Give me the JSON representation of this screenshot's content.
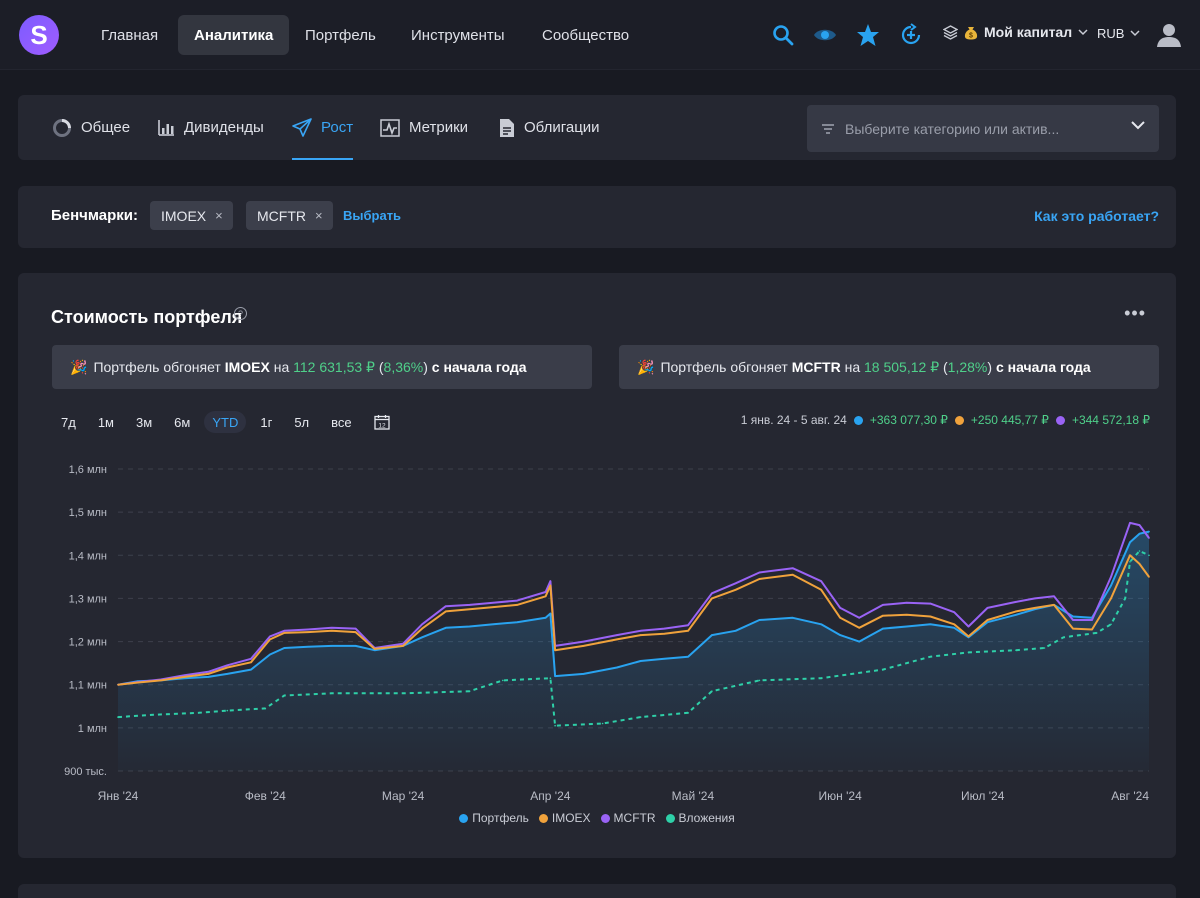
{
  "app": {
    "logo_letter": "S"
  },
  "nav": {
    "items": [
      "Главная",
      "Аналитика",
      "Портфель",
      "Инструменты",
      "Сообщество"
    ],
    "active_index": 1,
    "capital_label": "Мой капитал",
    "currency": "RUB"
  },
  "tabs": {
    "items": [
      "Общее",
      "Дивиденды",
      "Рост",
      "Метрики",
      "Облигации"
    ],
    "active_index": 2,
    "category_placeholder": "Выберите категорию или актив..."
  },
  "benchmarks": {
    "label": "Бенчмарки:",
    "chips": [
      "IMOEX",
      "MCFTR"
    ],
    "remove_glyph": "×",
    "choose_label": "Выбрать",
    "how_link": "Как это работает?"
  },
  "portfolio": {
    "title": "Стоимость портфеля",
    "help_glyph": "?",
    "more_glyph": "•••",
    "banners": [
      {
        "prefix": "Портфель обгоняет",
        "benchmark": "IMOEX",
        "on": "на",
        "amount": "112 631,53 ₽",
        "percent": "8,36%",
        "suffix": "с начала года"
      },
      {
        "prefix": "Портфель обгоняет",
        "benchmark": "MCFTR",
        "on": "на",
        "amount": "18 505,12 ₽",
        "percent": "1,28%",
        "suffix": "с начала года"
      }
    ],
    "periods": [
      "7д",
      "1м",
      "3м",
      "6м",
      "YTD",
      "1г",
      "5л",
      "все"
    ],
    "active_period": 4,
    "calendar_day": "12",
    "summary": {
      "range": "1 янв. 24 - 5 авг. 24",
      "values": [
        {
          "color": "#29a3f0",
          "text": "+363 077,30 ₽"
        },
        {
          "color": "#f0a23c",
          "text": "+250 445,77 ₽"
        },
        {
          "color": "#9a63f5",
          "text": "+344 572,18 ₽"
        }
      ]
    }
  },
  "chart_data": {
    "type": "line",
    "y_ticks": [
      "1,6 млн",
      "1,5 млн",
      "1,4 млн",
      "1,3 млн",
      "1,2 млн",
      "1,1 млн",
      "1 млн",
      "900 тыс."
    ],
    "ylim": [
      900000,
      1600000
    ],
    "x_ticks": [
      "Янв '24",
      "Фев '24",
      "Мар '24",
      "Апр '24",
      "Май '24",
      "Июн '24",
      "Июл '24",
      "Авг '24"
    ],
    "x_domain": [
      "2024-01-01",
      "2024-08-05"
    ],
    "grid": true,
    "legend_position": "bottom",
    "series": [
      {
        "name": "Портфель",
        "color": "#29a3f0",
        "style": "area",
        "points": [
          [
            "2024-01-01",
            1100000
          ],
          [
            "2024-01-05",
            1108000
          ],
          [
            "2024-01-10",
            1110000
          ],
          [
            "2024-01-15",
            1115000
          ],
          [
            "2024-01-20",
            1118000
          ],
          [
            "2024-01-24",
            1125000
          ],
          [
            "2024-01-29",
            1135000
          ],
          [
            "2024-02-02",
            1170000
          ],
          [
            "2024-02-05",
            1185000
          ],
          [
            "2024-02-10",
            1188000
          ],
          [
            "2024-02-15",
            1190000
          ],
          [
            "2024-02-20",
            1190000
          ],
          [
            "2024-02-24",
            1180000
          ],
          [
            "2024-03-01",
            1190000
          ],
          [
            "2024-03-05",
            1210000
          ],
          [
            "2024-03-10",
            1232000
          ],
          [
            "2024-03-15",
            1235000
          ],
          [
            "2024-03-20",
            1240000
          ],
          [
            "2024-03-25",
            1245000
          ],
          [
            "2024-03-31",
            1255000
          ],
          [
            "2024-04-01",
            1265000
          ],
          [
            "2024-04-02",
            1120000
          ],
          [
            "2024-04-08",
            1125000
          ],
          [
            "2024-04-15",
            1140000
          ],
          [
            "2024-04-20",
            1155000
          ],
          [
            "2024-04-25",
            1160000
          ],
          [
            "2024-04-30",
            1165000
          ],
          [
            "2024-05-05",
            1215000
          ],
          [
            "2024-05-10",
            1225000
          ],
          [
            "2024-05-15",
            1250000
          ],
          [
            "2024-05-22",
            1255000
          ],
          [
            "2024-05-28",
            1240000
          ],
          [
            "2024-06-01",
            1215000
          ],
          [
            "2024-06-05",
            1200000
          ],
          [
            "2024-06-10",
            1230000
          ],
          [
            "2024-06-15",
            1235000
          ],
          [
            "2024-06-20",
            1240000
          ],
          [
            "2024-06-25",
            1232000
          ],
          [
            "2024-06-28",
            1210000
          ],
          [
            "2024-07-02",
            1245000
          ],
          [
            "2024-07-08",
            1262000
          ],
          [
            "2024-07-12",
            1275000
          ],
          [
            "2024-07-16",
            1285000
          ],
          [
            "2024-07-20",
            1258000
          ],
          [
            "2024-07-24",
            1255000
          ],
          [
            "2024-07-28",
            1330000
          ],
          [
            "2024-08-01",
            1430000
          ],
          [
            "2024-08-03",
            1450000
          ],
          [
            "2024-08-05",
            1455000
          ]
        ]
      },
      {
        "name": "IMOEX",
        "color": "#f0a23c",
        "style": "line",
        "points": [
          [
            "2024-01-01",
            1100000
          ],
          [
            "2024-01-05",
            1105000
          ],
          [
            "2024-01-10",
            1110000
          ],
          [
            "2024-01-15",
            1118000
          ],
          [
            "2024-01-20",
            1125000
          ],
          [
            "2024-01-24",
            1140000
          ],
          [
            "2024-01-29",
            1152000
          ],
          [
            "2024-02-02",
            1205000
          ],
          [
            "2024-02-05",
            1220000
          ],
          [
            "2024-02-10",
            1222000
          ],
          [
            "2024-02-15",
            1225000
          ],
          [
            "2024-02-20",
            1222000
          ],
          [
            "2024-02-24",
            1183000
          ],
          [
            "2024-03-01",
            1190000
          ],
          [
            "2024-03-05",
            1230000
          ],
          [
            "2024-03-10",
            1270000
          ],
          [
            "2024-03-15",
            1275000
          ],
          [
            "2024-03-20",
            1280000
          ],
          [
            "2024-03-25",
            1285000
          ],
          [
            "2024-03-31",
            1305000
          ],
          [
            "2024-04-01",
            1330000
          ],
          [
            "2024-04-02",
            1180000
          ],
          [
            "2024-04-08",
            1190000
          ],
          [
            "2024-04-15",
            1205000
          ],
          [
            "2024-04-20",
            1215000
          ],
          [
            "2024-04-25",
            1218000
          ],
          [
            "2024-04-30",
            1225000
          ],
          [
            "2024-05-05",
            1300000
          ],
          [
            "2024-05-10",
            1320000
          ],
          [
            "2024-05-15",
            1345000
          ],
          [
            "2024-05-22",
            1355000
          ],
          [
            "2024-05-28",
            1320000
          ],
          [
            "2024-06-01",
            1255000
          ],
          [
            "2024-06-05",
            1232000
          ],
          [
            "2024-06-10",
            1260000
          ],
          [
            "2024-06-15",
            1262000
          ],
          [
            "2024-06-20",
            1258000
          ],
          [
            "2024-06-25",
            1240000
          ],
          [
            "2024-06-28",
            1212000
          ],
          [
            "2024-07-02",
            1250000
          ],
          [
            "2024-07-08",
            1270000
          ],
          [
            "2024-07-12",
            1278000
          ],
          [
            "2024-07-16",
            1285000
          ],
          [
            "2024-07-20",
            1230000
          ],
          [
            "2024-07-24",
            1228000
          ],
          [
            "2024-07-28",
            1300000
          ],
          [
            "2024-08-01",
            1400000
          ],
          [
            "2024-08-03",
            1380000
          ],
          [
            "2024-08-05",
            1350000
          ]
        ]
      },
      {
        "name": "MCFTR",
        "color": "#9a63f5",
        "style": "line",
        "points": [
          [
            "2024-01-01",
            1100000
          ],
          [
            "2024-01-05",
            1106000
          ],
          [
            "2024-01-10",
            1112000
          ],
          [
            "2024-01-15",
            1122000
          ],
          [
            "2024-01-20",
            1130000
          ],
          [
            "2024-01-24",
            1145000
          ],
          [
            "2024-01-29",
            1160000
          ],
          [
            "2024-02-02",
            1212000
          ],
          [
            "2024-02-05",
            1225000
          ],
          [
            "2024-02-10",
            1228000
          ],
          [
            "2024-02-15",
            1232000
          ],
          [
            "2024-02-20",
            1230000
          ],
          [
            "2024-02-24",
            1185000
          ],
          [
            "2024-03-01",
            1195000
          ],
          [
            "2024-03-05",
            1240000
          ],
          [
            "2024-03-10",
            1282000
          ],
          [
            "2024-03-15",
            1285000
          ],
          [
            "2024-03-20",
            1290000
          ],
          [
            "2024-03-25",
            1295000
          ],
          [
            "2024-03-31",
            1315000
          ],
          [
            "2024-04-01",
            1340000
          ],
          [
            "2024-04-02",
            1190000
          ],
          [
            "2024-04-08",
            1200000
          ],
          [
            "2024-04-15",
            1215000
          ],
          [
            "2024-04-20",
            1225000
          ],
          [
            "2024-04-25",
            1230000
          ],
          [
            "2024-04-30",
            1238000
          ],
          [
            "2024-05-05",
            1312000
          ],
          [
            "2024-05-10",
            1335000
          ],
          [
            "2024-05-15",
            1360000
          ],
          [
            "2024-05-22",
            1370000
          ],
          [
            "2024-05-28",
            1340000
          ],
          [
            "2024-06-01",
            1278000
          ],
          [
            "2024-06-05",
            1255000
          ],
          [
            "2024-06-10",
            1285000
          ],
          [
            "2024-06-15",
            1290000
          ],
          [
            "2024-06-20",
            1288000
          ],
          [
            "2024-06-25",
            1268000
          ],
          [
            "2024-06-28",
            1235000
          ],
          [
            "2024-07-02",
            1278000
          ],
          [
            "2024-07-08",
            1292000
          ],
          [
            "2024-07-12",
            1300000
          ],
          [
            "2024-07-16",
            1305000
          ],
          [
            "2024-07-20",
            1250000
          ],
          [
            "2024-07-24",
            1250000
          ],
          [
            "2024-07-28",
            1350000
          ],
          [
            "2024-08-01",
            1475000
          ],
          [
            "2024-08-03",
            1470000
          ],
          [
            "2024-08-05",
            1440000
          ]
        ]
      },
      {
        "name": "Вложения",
        "color": "#2ed0a8",
        "style": "dashed",
        "points": [
          [
            "2024-01-01",
            1025000
          ],
          [
            "2024-01-08",
            1030000
          ],
          [
            "2024-01-18",
            1035000
          ],
          [
            "2024-01-24",
            1040000
          ],
          [
            "2024-02-01",
            1045000
          ],
          [
            "2024-02-05",
            1075000
          ],
          [
            "2024-02-15",
            1080000
          ],
          [
            "2024-03-01",
            1080000
          ],
          [
            "2024-03-15",
            1085000
          ],
          [
            "2024-03-22",
            1110000
          ],
          [
            "2024-04-01",
            1115000
          ],
          [
            "2024-04-02",
            1005000
          ],
          [
            "2024-04-12",
            1010000
          ],
          [
            "2024-04-20",
            1025000
          ],
          [
            "2024-04-30",
            1035000
          ],
          [
            "2024-05-05",
            1085000
          ],
          [
            "2024-05-15",
            1110000
          ],
          [
            "2024-05-28",
            1115000
          ],
          [
            "2024-06-10",
            1135000
          ],
          [
            "2024-06-20",
            1165000
          ],
          [
            "2024-06-28",
            1175000
          ],
          [
            "2024-07-08",
            1180000
          ],
          [
            "2024-07-14",
            1185000
          ],
          [
            "2024-07-18",
            1210000
          ],
          [
            "2024-07-25",
            1220000
          ],
          [
            "2024-07-28",
            1240000
          ],
          [
            "2024-07-31",
            1300000
          ],
          [
            "2024-08-01",
            1385000
          ],
          [
            "2024-08-03",
            1410000
          ],
          [
            "2024-08-05",
            1400000
          ]
        ]
      }
    ]
  }
}
